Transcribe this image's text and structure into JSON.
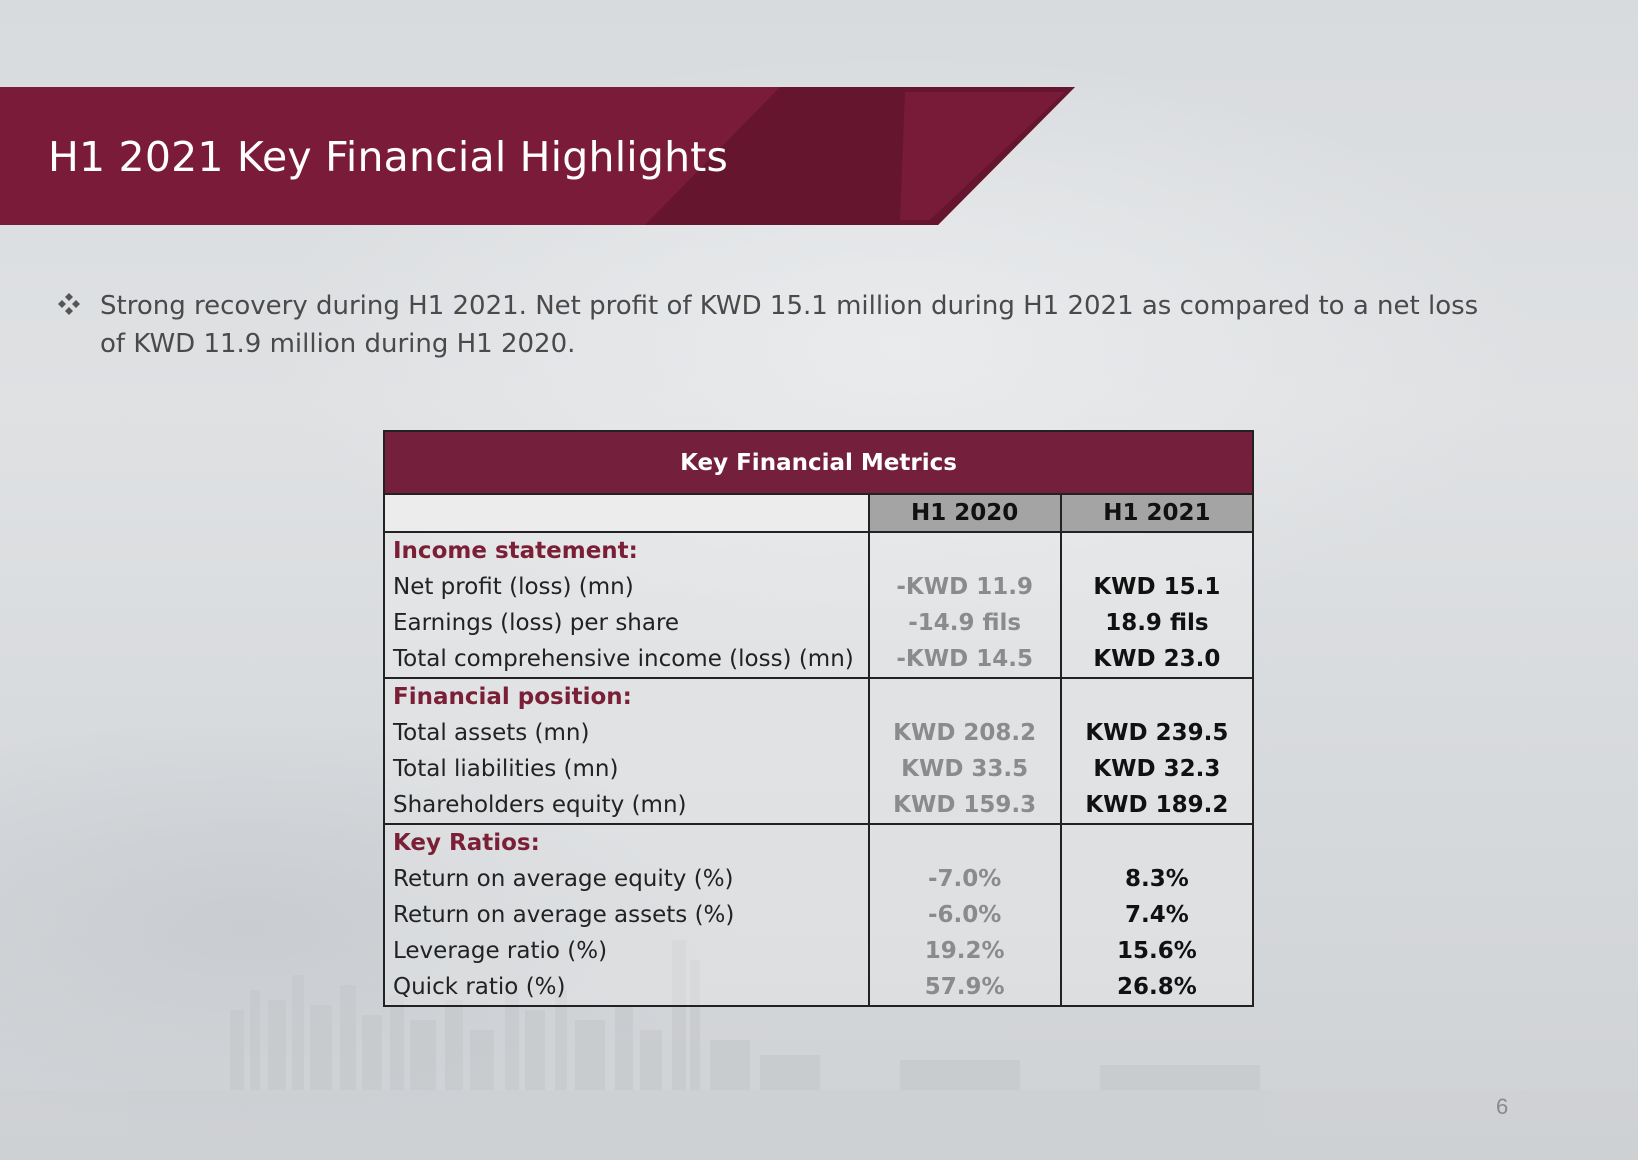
{
  "header": {
    "title": "H1 2021 Key Financial Highlights",
    "band_color": "#7b1b3a",
    "band_dark_color": "#5e1429"
  },
  "bullet": {
    "icon": "diamond-cluster-icon",
    "text": "Strong recovery during H1 2021. Net profit of KWD 15.1 million during H1 2021 as compared to a net loss of KWD 11.9 million during H1 2020."
  },
  "table": {
    "caption": "Key Financial Metrics",
    "columns": [
      "H1 2020",
      "H1 2021"
    ],
    "sections": [
      {
        "label": "Income statement:",
        "rows": [
          {
            "label": "Net profit (loss) (mn)",
            "h1_2020": "-KWD 11.9",
            "h1_2021": "KWD 15.1"
          },
          {
            "label": "Earnings (loss) per share",
            "h1_2020": "-14.9 fils",
            "h1_2021": "18.9 fils"
          },
          {
            "label": "Total comprehensive income (loss) (mn)",
            "h1_2020": "-KWD 14.5",
            "h1_2021": "KWD 23.0"
          }
        ]
      },
      {
        "label": "Financial position:",
        "rows": [
          {
            "label": "Total assets (mn)",
            "h1_2020": "KWD 208.2",
            "h1_2021": "KWD 239.5"
          },
          {
            "label": "Total liabilities (mn)",
            "h1_2020": "KWD 33.5",
            "h1_2021": "KWD 32.3"
          },
          {
            "label": "Shareholders equity (mn)",
            "h1_2020": "KWD 159.3",
            "h1_2021": "KWD 189.2"
          }
        ]
      },
      {
        "label": "Key Ratios:",
        "rows": [
          {
            "label": "Return on average equity (%)",
            "h1_2020": "-7.0%",
            "h1_2021": "8.3%"
          },
          {
            "label": "Return on average assets (%)",
            "h1_2020": "-6.0%",
            "h1_2021": "7.4%"
          },
          {
            "label": "Leverage ratio (%)",
            "h1_2020": "19.2%",
            "h1_2021": "15.6%"
          },
          {
            "label": "Quick ratio (%)",
            "h1_2020": "57.9%",
            "h1_2021": "26.8%"
          }
        ]
      }
    ]
  },
  "footer": {
    "page_number": "6"
  }
}
